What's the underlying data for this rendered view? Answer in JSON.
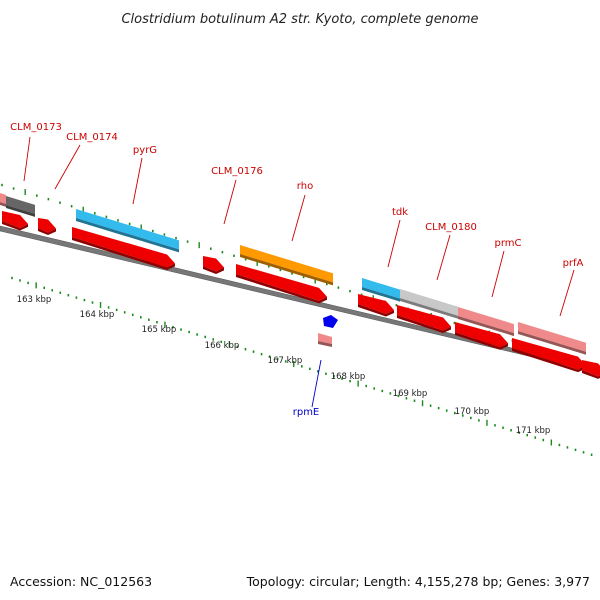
{
  "title": "Clostridium botulinum A2 str. Kyoto, complete genome",
  "footer": {
    "accession": "Accession: NC_012563",
    "topology": "Topology: circular; Length: 4,155,278 bp; Genes: 3,977"
  },
  "colors": {
    "cds_red": "#ee0000",
    "pink": "#f08a8a",
    "cyan": "#33bbee",
    "orange": "#ff9900",
    "gray_dark": "#666666",
    "gray_light": "#c8c8c8",
    "blue": "#0000ee",
    "tick_green": "#1a8a1a",
    "backbone": "#777777",
    "label_red": "#cc0000",
    "label_blue": "#0000cc"
  },
  "ticks": [
    "163 kbp",
    "164 kbp",
    "165 kbp",
    "166 kbp",
    "167 kbp",
    "168 kbp",
    "169 kbp",
    "170 kbp",
    "171 kbp"
  ],
  "genes": [
    {
      "name": "CLM_0173"
    },
    {
      "name": "CLM_0174"
    },
    {
      "name": "pyrG"
    },
    {
      "name": "CLM_0176"
    },
    {
      "name": "rho"
    },
    {
      "name": "tdk"
    },
    {
      "name": "CLM_0180"
    },
    {
      "name": "prmC"
    },
    {
      "name": "prfA"
    },
    {
      "name": "rpmE"
    }
  ]
}
